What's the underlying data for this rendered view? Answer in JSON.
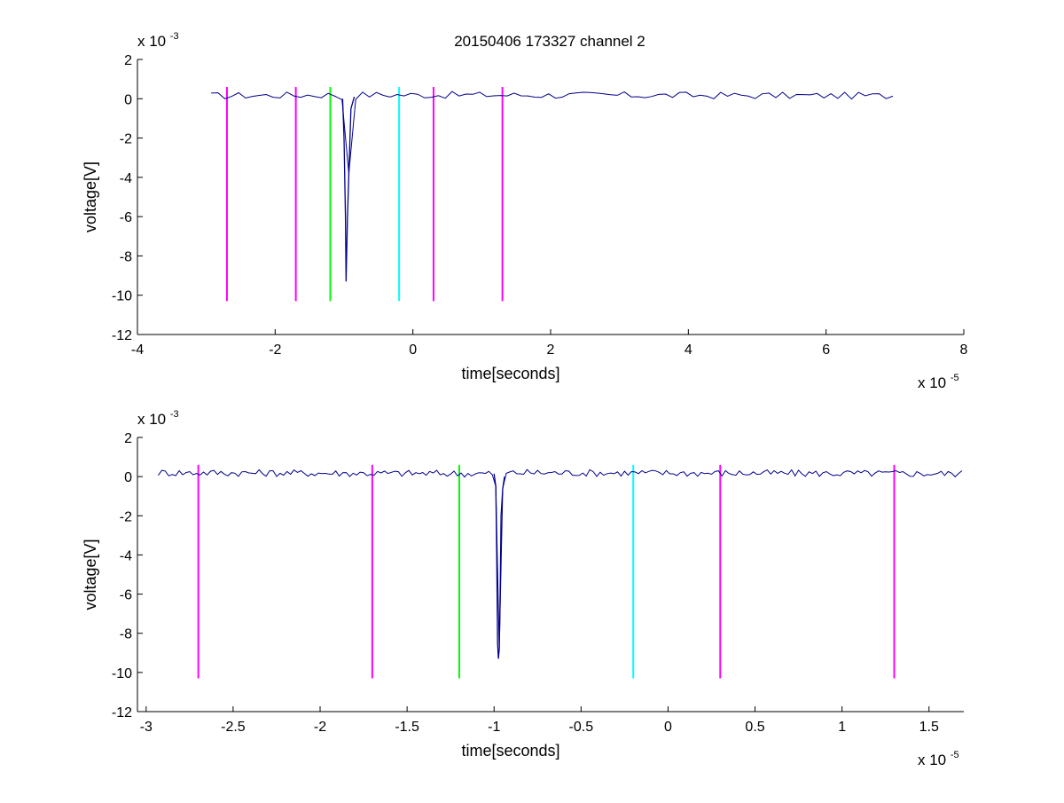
{
  "title": "20150406 173327 channel 2",
  "colors": {
    "background": "#ffffff",
    "axes": "#000000",
    "signal": "#00008b",
    "magenta": "#ff00ff",
    "green": "#00ff00",
    "cyan": "#00ffff"
  },
  "chart_data": [
    {
      "type": "line",
      "title": "20150406 173327 channel 2",
      "xlabel": "time[seconds]",
      "ylabel": "voltage[V]",
      "x_exponent_label": "x 10",
      "x_exponent": "-5",
      "y_exponent_label": "x 10",
      "y_exponent": "-3",
      "x_scale": 1e-05,
      "y_scale": 0.001,
      "xlim": [
        -4,
        8
      ],
      "ylim": [
        -12,
        2
      ],
      "xticks": [
        "-4",
        "-2",
        "0",
        "2",
        "4",
        "6",
        "8"
      ],
      "xtick_values": [
        -4,
        -2,
        0,
        2,
        4,
        6,
        8
      ],
      "yticks": [
        "2",
        "0",
        "-2",
        "-4",
        "-6",
        "-8",
        "-10",
        "-12"
      ],
      "ytick_values": [
        2,
        0,
        -2,
        -4,
        -6,
        -8,
        -10,
        -12
      ],
      "grid": false,
      "series": [
        {
          "color": "#00008b",
          "x": [
            -2.93,
            -1.1,
            -1.02,
            -1.0,
            -0.98,
            -0.97,
            -0.95,
            -0.9,
            -0.85,
            -0.8,
            7.0
          ],
          "y": [
            0.15,
            0.2,
            0.0,
            -2.0,
            -6.0,
            -9.3,
            -6.0,
            -0.5,
            0.1,
            0.2,
            0.15
          ],
          "noise_amplitude": 0.18,
          "sample_step": 0.1
        }
      ],
      "vlines": [
        {
          "x": -2.7,
          "y": [
            -10.3,
            0.6
          ],
          "color": "#ff00ff"
        },
        {
          "x": -1.7,
          "y": [
            -10.3,
            0.6
          ],
          "color": "#ff00ff"
        },
        {
          "x": -1.2,
          "y": [
            -10.3,
            0.6
          ],
          "color": "#00ff00"
        },
        {
          "x": -0.2,
          "y": [
            -10.3,
            0.6
          ],
          "color": "#00ffff"
        },
        {
          "x": 0.3,
          "y": [
            -10.3,
            0.6
          ],
          "color": "#ff00ff"
        },
        {
          "x": 1.3,
          "y": [
            -10.3,
            0.6
          ],
          "color": "#ff00ff"
        }
      ]
    },
    {
      "type": "line",
      "title": "",
      "xlabel": "time[seconds]",
      "ylabel": "voltage[V]",
      "x_exponent_label": "x 10",
      "x_exponent": "-5",
      "y_exponent_label": "x 10",
      "y_exponent": "-3",
      "x_scale": 1e-05,
      "y_scale": 0.001,
      "xlim": [
        -3.05,
        1.7
      ],
      "ylim": [
        -12,
        2
      ],
      "xticks": [
        "-3",
        "-2.5",
        "-2",
        "-1.5",
        "-1",
        "-0.5",
        "0",
        "0.5",
        "1",
        "1.5"
      ],
      "xtick_values": [
        -3,
        -2.5,
        -2,
        -1.5,
        -1,
        -0.5,
        0,
        0.5,
        1,
        1.5
      ],
      "yticks": [
        "2",
        "0",
        "-2",
        "-4",
        "-6",
        "-8",
        "-10",
        "-12"
      ],
      "ytick_values": [
        2,
        0,
        -2,
        -4,
        -6,
        -8,
        -10,
        -12
      ],
      "grid": false,
      "series": [
        {
          "color": "#00008b",
          "x": [
            -2.93,
            -1.0,
            -0.99,
            -0.985,
            -0.98,
            -0.975,
            -0.97,
            -0.965,
            -0.96,
            -0.95,
            -0.94,
            -0.92,
            1.7
          ],
          "y": [
            0.2,
            0.15,
            -0.5,
            -4.0,
            -8.5,
            -9.3,
            -8.8,
            -6.0,
            -2.0,
            -0.6,
            0.0,
            0.2,
            0.15
          ],
          "noise_amplitude": 0.18,
          "sample_step": 0.02
        }
      ],
      "vlines": [
        {
          "x": -2.7,
          "y": [
            -10.3,
            0.6
          ],
          "color": "#ff00ff"
        },
        {
          "x": -1.7,
          "y": [
            -10.3,
            0.6
          ],
          "color": "#ff00ff"
        },
        {
          "x": -1.2,
          "y": [
            -10.3,
            0.6
          ],
          "color": "#00ff00"
        },
        {
          "x": -0.2,
          "y": [
            -10.3,
            0.6
          ],
          "color": "#00ffff"
        },
        {
          "x": 0.3,
          "y": [
            -10.3,
            0.6
          ],
          "color": "#ff00ff"
        },
        {
          "x": 1.3,
          "y": [
            -10.3,
            0.6
          ],
          "color": "#ff00ff"
        }
      ]
    }
  ]
}
